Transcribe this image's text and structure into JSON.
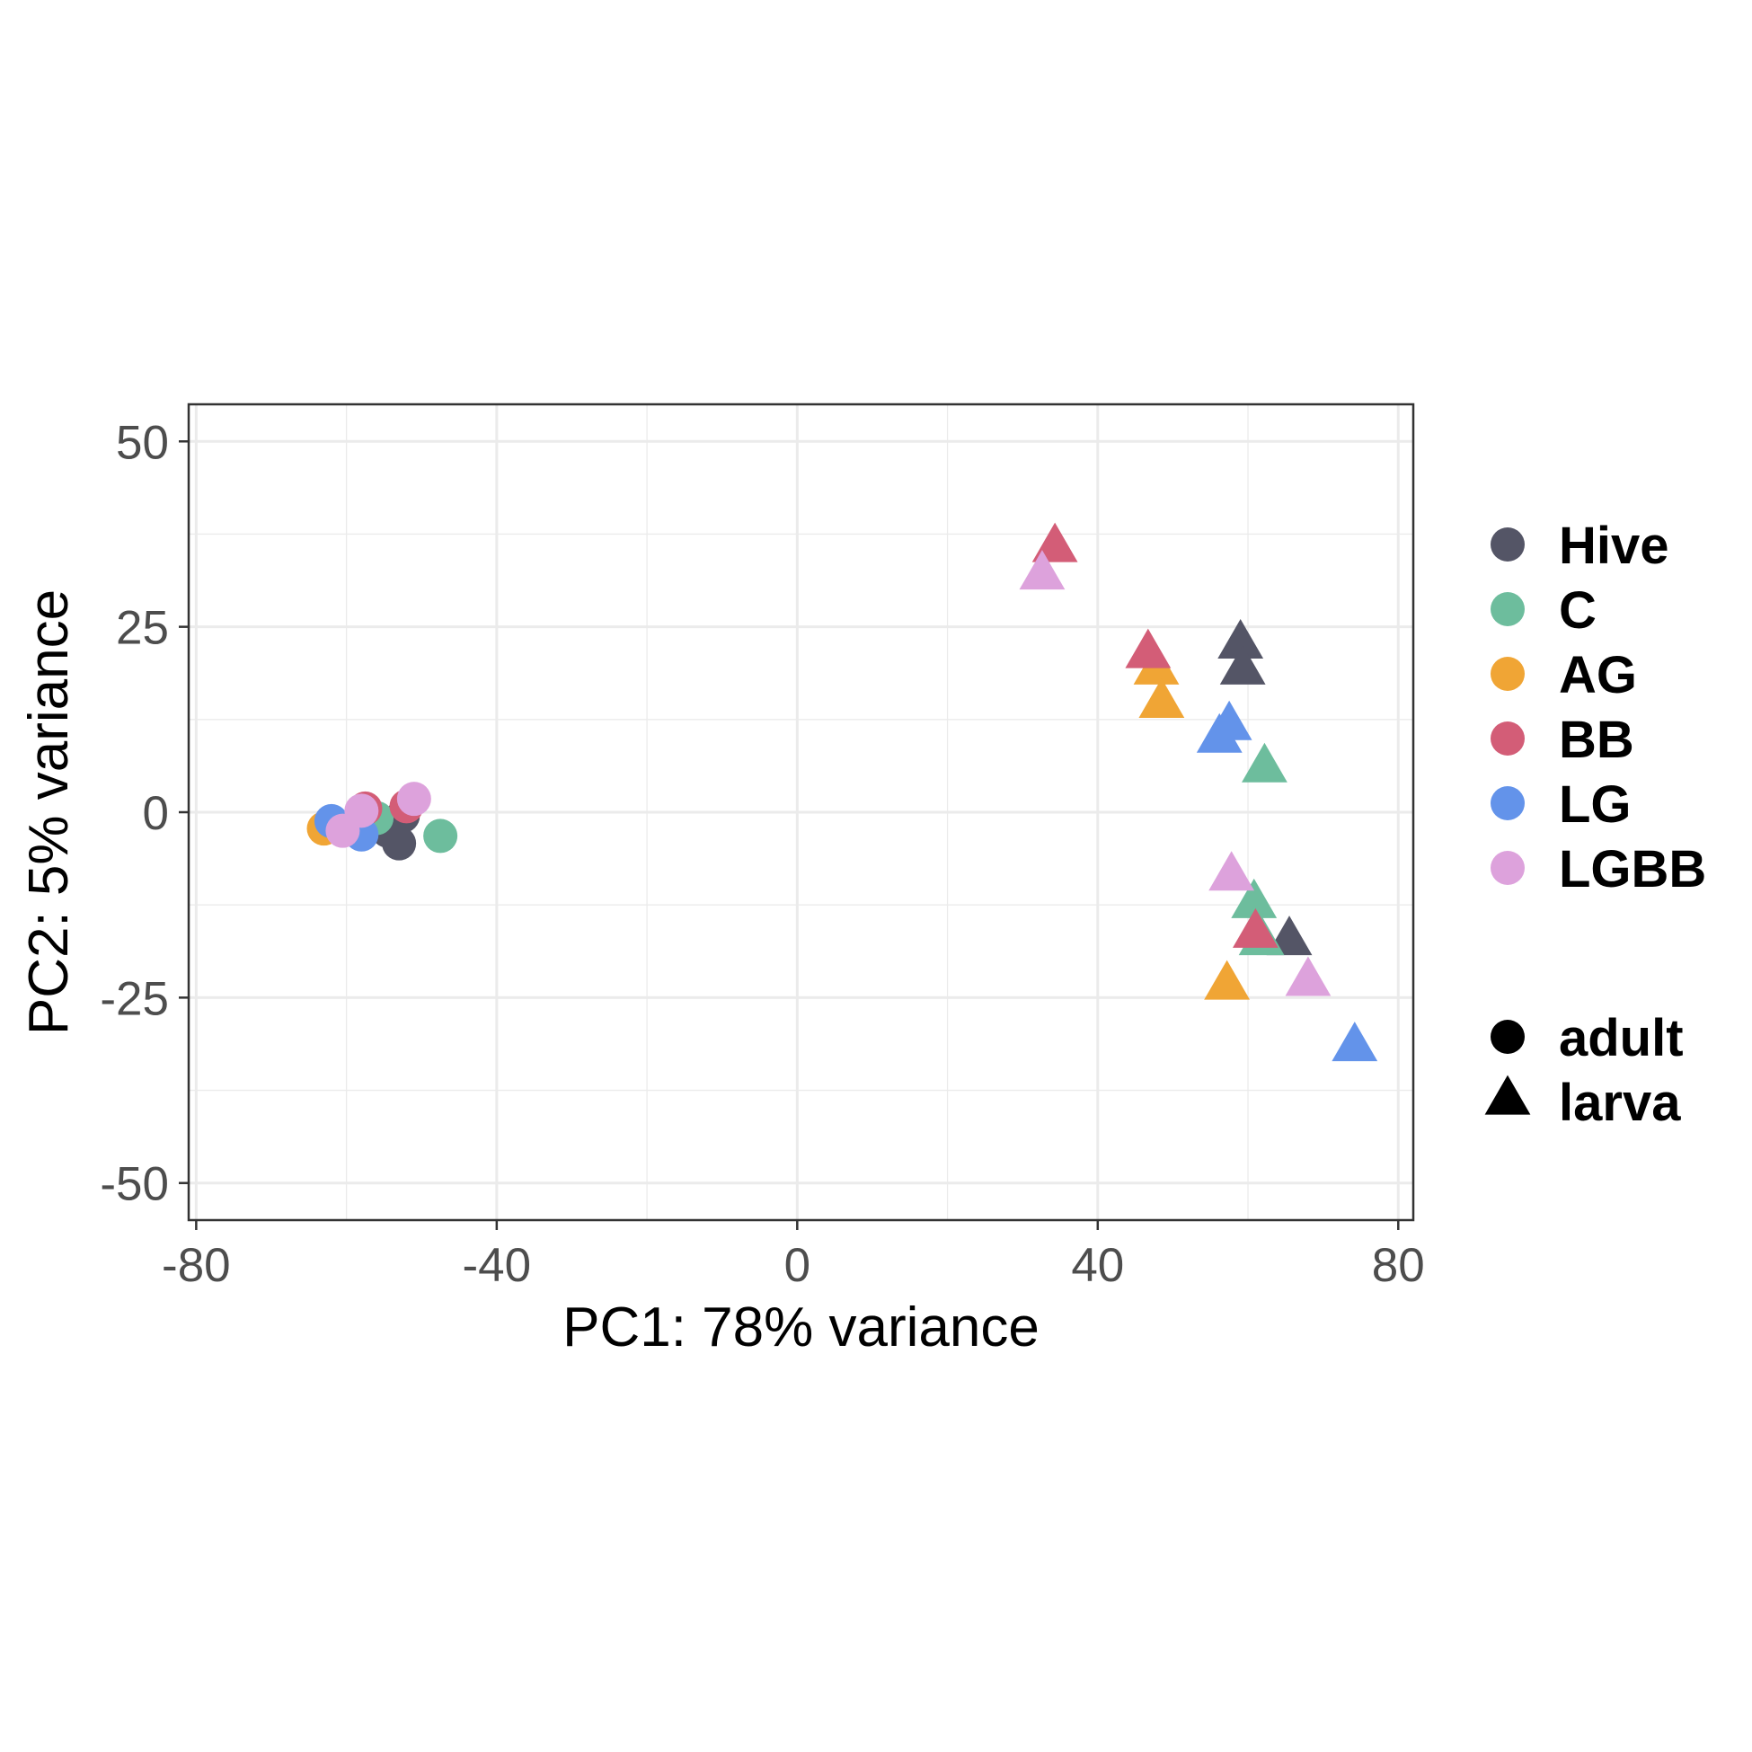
{
  "chart_data": {
    "type": "scatter",
    "xlabel": "PC1: 78% variance",
    "ylabel": "PC2: 5% variance",
    "xlim": [
      -81,
      82
    ],
    "ylim": [
      -55,
      55
    ],
    "xticks": [
      -80,
      -40,
      0,
      40,
      80
    ],
    "yticks": [
      50,
      25,
      0,
      -25,
      -50
    ],
    "xtick_labels": [
      "-80",
      "-40",
      "0",
      "40",
      "80"
    ],
    "ytick_labels": [
      "50",
      "25",
      "0",
      "-25",
      "-50"
    ],
    "grid": true,
    "legend_position": "right",
    "color_legend": [
      {
        "name": "Hive",
        "color": "#545566"
      },
      {
        "name": "C",
        "color": "#6DBD9D"
      },
      {
        "name": "AG",
        "color": "#F0A535"
      },
      {
        "name": "BB",
        "color": "#D35D77"
      },
      {
        "name": "LG",
        "color": "#6393EA"
      },
      {
        "name": "LGBB",
        "color": "#DDA2DC"
      }
    ],
    "shape_legend": [
      {
        "name": "adult",
        "shape": "circle"
      },
      {
        "name": "larva",
        "shape": "triangle"
      }
    ],
    "series": [
      {
        "name": "Hive",
        "color": "#545566",
        "points": [
          {
            "x": -54.5,
            "y": -2.5,
            "shape": "circle"
          },
          {
            "x": -53.5,
            "y": -1.5,
            "shape": "circle"
          },
          {
            "x": -52.5,
            "y": -0.5,
            "shape": "circle"
          },
          {
            "x": -53.0,
            "y": -4.2,
            "shape": "circle"
          },
          {
            "x": 59.0,
            "y": 22.5,
            "shape": "triangle"
          },
          {
            "x": 59.3,
            "y": 19.0,
            "shape": "triangle"
          },
          {
            "x": 65.5,
            "y": -17.5,
            "shape": "triangle"
          }
        ]
      },
      {
        "name": "C",
        "color": "#6DBD9D",
        "points": [
          {
            "x": -47.5,
            "y": -3.2,
            "shape": "circle"
          },
          {
            "x": -56.0,
            "y": -0.8,
            "shape": "circle"
          },
          {
            "x": 62.2,
            "y": 5.8,
            "shape": "triangle"
          },
          {
            "x": 60.8,
            "y": -12.5,
            "shape": "triangle"
          },
          {
            "x": 61.8,
            "y": -17.5,
            "shape": "triangle"
          }
        ]
      },
      {
        "name": "AG",
        "color": "#F0A535",
        "points": [
          {
            "x": -63.0,
            "y": -2.2,
            "shape": "circle"
          },
          {
            "x": 47.8,
            "y": 19.0,
            "shape": "triangle"
          },
          {
            "x": 48.5,
            "y": 14.5,
            "shape": "triangle"
          },
          {
            "x": 57.2,
            "y": -23.5,
            "shape": "triangle"
          }
        ]
      },
      {
        "name": "BB",
        "color": "#D35D77",
        "points": [
          {
            "x": -57.5,
            "y": 0.5,
            "shape": "circle"
          },
          {
            "x": -52.0,
            "y": 0.8,
            "shape": "circle"
          },
          {
            "x": 34.3,
            "y": 35.5,
            "shape": "triangle"
          },
          {
            "x": 46.7,
            "y": 21.2,
            "shape": "triangle"
          },
          {
            "x": 61.0,
            "y": -16.5,
            "shape": "triangle"
          }
        ]
      },
      {
        "name": "LG",
        "color": "#6393EA",
        "points": [
          {
            "x": -62.0,
            "y": -1.2,
            "shape": "circle"
          },
          {
            "x": -58.0,
            "y": -3.0,
            "shape": "circle"
          },
          {
            "x": 57.5,
            "y": 11.5,
            "shape": "triangle"
          },
          {
            "x": 56.2,
            "y": 9.8,
            "shape": "triangle"
          },
          {
            "x": 74.2,
            "y": -31.8,
            "shape": "triangle"
          }
        ]
      },
      {
        "name": "LGBB",
        "color": "#DDA2DC",
        "points": [
          {
            "x": -58.0,
            "y": 0.2,
            "shape": "circle"
          },
          {
            "x": -60.5,
            "y": -2.5,
            "shape": "circle"
          },
          {
            "x": -51.0,
            "y": 1.8,
            "shape": "circle"
          },
          {
            "x": 32.6,
            "y": 31.8,
            "shape": "triangle"
          },
          {
            "x": 57.8,
            "y": -8.8,
            "shape": "triangle"
          },
          {
            "x": 68.0,
            "y": -23.0,
            "shape": "triangle"
          }
        ]
      }
    ]
  }
}
